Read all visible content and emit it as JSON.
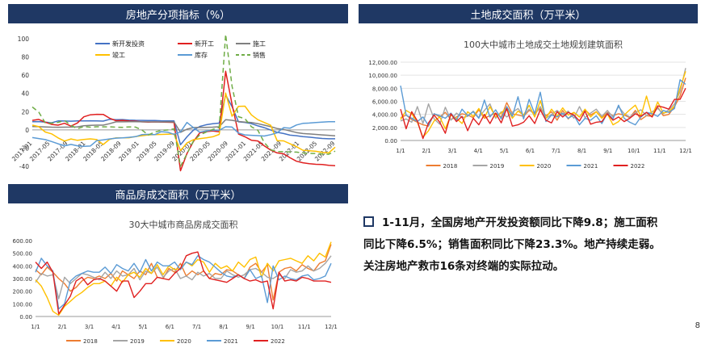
{
  "headers": {
    "left_top": "房地产分项指标（%）",
    "right_top": "土地成交面积（万平米）",
    "left_bottom": "商品房成交面积（万平米）"
  },
  "bullet": {
    "line1": "1-11月，全国房地产开发投资额同比下降9.8；施工面积",
    "line2": "同比下降6.5%；销售面积同比下降23.3%。地产持续走弱。",
    "line3": "关注房地产救市16条对终端的实际拉动。"
  },
  "page_number": "8",
  "colors": {
    "header_bg": "#1f3864"
  },
  "chart_data": [
    {
      "type": "line",
      "title": "",
      "xlabel": "",
      "ylabel": "",
      "ylim": [
        -40,
        100
      ],
      "yticks": [
        "100",
        "80",
        "60",
        "40",
        "20",
        "0",
        "-20",
        "-40"
      ],
      "x_ticks": [
        "2017-01",
        "2017-05",
        "2017-09",
        "2018-01",
        "2018-05",
        "2018-09",
        "2019-01",
        "2019-05",
        "2019-09",
        "2020-01",
        "2020-05",
        "2020-09",
        "2021-01",
        "2021-05",
        "2021-09",
        "2022-01",
        "2022-05",
        "2022-09"
      ],
      "legend_position": "top-right",
      "series": [
        {
          "name": "新开发投资",
          "color": "#4472c4",
          "dash": "",
          "values": [
            8.9,
            9.1,
            8.5,
            7.8,
            9.8,
            9.7,
            9.5,
            9.9,
            9.8,
            10.0,
            9.9,
            9.6,
            11.6,
            11.2,
            11.3,
            10.8,
            10.5,
            10.4,
            10.2,
            10.3,
            10.0,
            9.9,
            9.8,
            -16.3,
            -7.7,
            -0.3,
            3.8,
            5.6,
            6.8,
            7.4,
            38.3,
            25.6,
            8.8,
            8.2,
            6.8,
            4.4,
            2.4,
            -0.2,
            -2.7,
            -4.0,
            -5.8,
            -6.4,
            -7.4,
            -8.0,
            -8.8,
            -9.4,
            -9.8,
            -9.8
          ]
        },
        {
          "name": "新开工",
          "color": "#e02020",
          "dash": "",
          "values": [
            10.4,
            11.5,
            8.5,
            6.0,
            5.2,
            7.2,
            4.1,
            7.6,
            14.3,
            16.5,
            17.1,
            17.0,
            12.8,
            10.1,
            10.4,
            9.7,
            9.5,
            8.8,
            8.6,
            8.7,
            8.5,
            8.4,
            8.2,
            -44.9,
            -26.0,
            -12.8,
            -3.2,
            -1.9,
            -1.2,
            -2.1,
            64.3,
            28.2,
            -4.6,
            -7.6,
            -11.4,
            -12.2,
            -17.5,
            -22.2,
            -25.3,
            -26.3,
            -30.6,
            -34.4,
            -36.1,
            -37.2,
            -37.8,
            -38.0,
            -38.9,
            -39.4
          ]
        },
        {
          "name": "施工",
          "color": "#7f7f7f",
          "dash": "",
          "values": [
            3.7,
            3.5,
            3.2,
            3.0,
            2.9,
            3.0,
            3.1,
            3.3,
            4.5,
            5.0,
            5.2,
            5.2,
            6.8,
            8.8,
            8.8,
            9.0,
            8.9,
            8.8,
            8.8,
            8.7,
            8.7,
            8.8,
            8.7,
            -2.7,
            0.8,
            2.5,
            2.6,
            2.8,
            3.0,
            3.4,
            11.2,
            10.5,
            9.2,
            8.6,
            8.0,
            6.8,
            5.2,
            3.5,
            1.5,
            0.5,
            -1.2,
            -3.0,
            -4.0,
            -4.5,
            -5.0,
            -5.5,
            -6.0,
            -6.5
          ]
        },
        {
          "name": "竣工",
          "color": "#ffc000",
          "dash": "",
          "values": [
            5.2,
            3.5,
            -2.3,
            -4.4,
            -8.8,
            -12.3,
            -10.0,
            -11.5,
            -10.6,
            -9.9,
            -10.7,
            -16.1,
            -10.4,
            -8.7,
            -8.8,
            -8.6,
            -7.3,
            -6.4,
            -5.5,
            -5.3,
            -5.0,
            -4.7,
            -4.5,
            -22.9,
            -14.3,
            -10.8,
            -9.6,
            -8.7,
            -7.6,
            -5.0,
            40.4,
            14.9,
            25.8,
            26.0,
            16.4,
            11.1,
            8.1,
            5.0,
            -11.9,
            -12.1,
            -15.3,
            -18.5,
            -22.4,
            -22.9,
            -23.5,
            -24.8,
            -25.3,
            -19.0
          ]
        },
        {
          "name": "库存",
          "color": "#5b9bd5",
          "dash": "",
          "values": [
            -8.5,
            -9.5,
            -10.7,
            -12.8,
            -15.3,
            -17.5,
            -16.0,
            -17.5,
            -18.0,
            -17.8,
            -11.8,
            -11.0,
            -10.0,
            -9.1,
            -8.8,
            -8.2,
            -7.5,
            -5.3,
            -4.9,
            -5.3,
            -2.0,
            -2.5,
            -4.9,
            -2.2,
            8.1,
            2.4,
            -2.6,
            -1.2,
            -0.4,
            -0.5,
            3.4,
            3.1,
            -3.5,
            -5.5,
            -6.0,
            -6.3,
            -6.8,
            -5.3,
            -3.2,
            2.4,
            1.8,
            5.4,
            7.1,
            7.5,
            8.0,
            8.5,
            9.0,
            9.0
          ]
        },
        {
          "name": "销售",
          "color": "#70ad47",
          "dash": "6 4",
          "values": [
            25.1,
            19.5,
            7.8,
            7.3,
            8.2,
            10.2,
            4.9,
            1.3,
            3.6,
            3.0,
            3.4,
            3.3,
            3.3,
            3.0,
            2.8,
            3.2,
            3.1,
            0.0,
            -5.6,
            -2.4,
            -0.6,
            -0.1,
            1.1,
            -39.9,
            -26.3,
            -12.3,
            -5.4,
            -2.4,
            0.5,
            2.6,
            104.9,
            48.1,
            14.4,
            12.3,
            3.4,
            -0.5,
            -13.9,
            -21.8,
            -23.8,
            -24.0,
            -24.2,
            -24.4,
            -25.4,
            -25.7,
            -26.0,
            -26.5,
            -26.8,
            -23.3
          ]
        }
      ]
    },
    {
      "type": "line",
      "title": "100大中城市土地成交土地规划建筑面积",
      "xlabel": "",
      "ylabel": "",
      "ylim": [
        0,
        12000
      ],
      "yticks": [
        "12,000.00",
        "10,000.00",
        "8,000.00",
        "6,000.00",
        "4,000.00",
        "2,000.00",
        "0.00"
      ],
      "x_ticks": [
        "1/1",
        "2/1",
        "3/1",
        "4/1",
        "5/1",
        "6/1",
        "7/1",
        "8/1",
        "9/1",
        "10/1",
        "11/1",
        "12/1"
      ],
      "legend_position": "bottom",
      "series": [
        {
          "name": "2018",
          "color": "#ed7d31",
          "values": [
            3500,
            3900,
            3200,
            2800,
            2400,
            2200,
            4100,
            3600,
            4300,
            3200,
            3600,
            4100,
            3900,
            3500,
            4700,
            3400,
            3800,
            4200,
            3600,
            5800,
            4100,
            3900,
            3700,
            4600,
            4200,
            4900,
            3800,
            4400,
            3100,
            4600,
            3300,
            4300,
            3600,
            4700,
            3900,
            4400,
            3500,
            4300,
            3800,
            4100,
            3900,
            3500,
            4600,
            3200,
            3800,
            3700,
            5100,
            3800,
            4000,
            5200,
            6800,
            9600
          ]
        },
        {
          "name": "2019",
          "color": "#a5a5a5",
          "values": [
            3000,
            3300,
            2800,
            5200,
            2600,
            5600,
            3300,
            2500,
            5100,
            3100,
            4200,
            3500,
            3700,
            4500,
            3500,
            4600,
            5600,
            3400,
            4400,
            3600,
            4300,
            4900,
            3800,
            4800,
            3900,
            5200,
            3400,
            4000,
            4600,
            3900,
            4500,
            3400,
            5200,
            3500,
            4200,
            4800,
            3700,
            4600,
            3600,
            5200,
            4100,
            3600,
            4300,
            4700,
            3800,
            4400,
            4900,
            4100,
            4700,
            5600,
            7500,
            11100
          ]
        },
        {
          "name": "2020",
          "color": "#ffc000",
          "values": [
            3200,
            4600,
            4100,
            2800,
            500,
            1500,
            3000,
            3600,
            1800,
            3900,
            3400,
            2600,
            4400,
            3700,
            4900,
            3500,
            5200,
            3600,
            4200,
            5100,
            3400,
            4500,
            3900,
            5400,
            3600,
            6100,
            3400,
            4800,
            3700,
            5000,
            3900,
            4300,
            3600,
            4800,
            3600,
            4400,
            3400,
            4100,
            2400,
            2900,
            3900,
            4700,
            5400,
            3700,
            6800,
            3800,
            5900,
            4200,
            4400,
            5300,
            8000,
            10600
          ]
        },
        {
          "name": "2021",
          "color": "#5b9bd5",
          "values": [
            8400,
            3900,
            3400,
            2900,
            3600,
            2300,
            4100,
            3800,
            3400,
            4200,
            3100,
            4800,
            3800,
            4400,
            3400,
            6200,
            3600,
            4700,
            3300,
            5200,
            3700,
            6700,
            3300,
            6300,
            4100,
            7400,
            2900,
            3900,
            3600,
            4200,
            3400,
            3900,
            2400,
            3400,
            3100,
            3800,
            2600,
            4200,
            3300,
            5400,
            3400,
            2800,
            2400,
            3600,
            4300,
            4100,
            3700,
            4600,
            4300,
            4900,
            9300,
            8600
          ]
        },
        {
          "name": "2022",
          "color": "#e02020",
          "values": [
            4800,
            1800,
            4400,
            3000,
            300,
            2700,
            3900,
            2800,
            1100,
            4100,
            2900,
            3700,
            1500,
            3400,
            2400,
            4000,
            2600,
            4200,
            2700,
            4900,
            2200,
            2400,
            2800,
            3800,
            2600,
            4700,
            3100,
            2700,
            4400,
            3600,
            4300,
            3900,
            3000,
            4500,
            2500,
            2800,
            2900,
            4100,
            3100,
            3600,
            2900,
            3400,
            4100,
            3700,
            4300,
            3600,
            5300,
            5100,
            4800,
            6300,
            6300,
            8000
          ]
        }
      ]
    },
    {
      "type": "line",
      "title": "30大中城市商品房成交面积",
      "xlabel": "",
      "ylabel": "",
      "ylim": [
        0,
        600
      ],
      "yticks": [
        "600.00",
        "500.00",
        "400.00",
        "300.00",
        "200.00",
        "100.00",
        "0.00"
      ],
      "x_ticks": [
        "1/1",
        "2/1",
        "3/1",
        "4/1",
        "5/1",
        "6/1",
        "7/1",
        "8/1",
        "9/1",
        "10/1",
        "11/1",
        "12/1"
      ],
      "legend_position": "bottom",
      "series": [
        {
          "name": "2018",
          "color": "#ed7d31",
          "values": [
            370,
            330,
            390,
            350,
            300,
            260,
            200,
            230,
            280,
            310,
            300,
            320,
            300,
            340,
            280,
            360,
            330,
            300,
            360,
            330,
            420,
            310,
            300,
            380,
            350,
            420,
            320,
            360,
            330,
            360,
            300,
            340,
            330,
            370,
            360,
            330,
            300,
            390,
            420,
            350,
            410,
            130,
            350,
            380,
            390,
            360,
            410,
            380,
            360,
            420,
            440,
            570
          ]
        },
        {
          "name": "2019",
          "color": "#a5a5a5",
          "values": [
            270,
            340,
            320,
            330,
            140,
            310,
            260,
            300,
            340,
            330,
            310,
            290,
            350,
            300,
            360,
            320,
            330,
            380,
            290,
            360,
            340,
            390,
            310,
            360,
            380,
            300,
            320,
            290,
            350,
            320,
            340,
            300,
            300,
            360,
            330,
            310,
            330,
            370,
            380,
            350,
            310,
            300,
            330,
            300,
            370,
            350,
            360,
            400,
            360,
            380,
            420,
            480
          ]
        },
        {
          "name": "2020",
          "color": "#ffc000",
          "values": [
            290,
            240,
            150,
            40,
            10,
            80,
            120,
            160,
            190,
            230,
            260,
            260,
            280,
            240,
            310,
            270,
            330,
            350,
            310,
            380,
            340,
            410,
            330,
            400,
            370,
            380,
            430,
            400,
            450,
            430,
            350,
            420,
            380,
            400,
            360,
            430,
            390,
            450,
            470,
            310,
            420,
            360,
            440,
            450,
            460,
            440,
            420,
            480,
            440,
            500,
            470,
            590
          ]
        },
        {
          "name": "2021",
          "color": "#5b9bd5",
          "values": [
            350,
            460,
            400,
            360,
            60,
            100,
            280,
            320,
            340,
            360,
            350,
            350,
            390,
            340,
            410,
            380,
            360,
            420,
            350,
            450,
            360,
            430,
            400,
            400,
            430,
            370,
            430,
            410,
            480,
            450,
            430,
            390,
            350,
            320,
            310,
            330,
            300,
            370,
            300,
            320,
            110,
            400,
            290,
            320,
            300,
            290,
            320,
            330,
            290,
            300,
            320,
            420
          ]
        },
        {
          "name": "2022",
          "color": "#e02020",
          "values": [
            430,
            380,
            430,
            350,
            20,
            90,
            160,
            280,
            310,
            250,
            290,
            300,
            280,
            240,
            200,
            280,
            280,
            150,
            200,
            260,
            260,
            310,
            300,
            290,
            340,
            380,
            480,
            500,
            510,
            360,
            300,
            290,
            280,
            270,
            300,
            330,
            300,
            280,
            290,
            270,
            280,
            60,
            350,
            280,
            290,
            280,
            310,
            300,
            280,
            280,
            280,
            270
          ]
        }
      ]
    }
  ]
}
